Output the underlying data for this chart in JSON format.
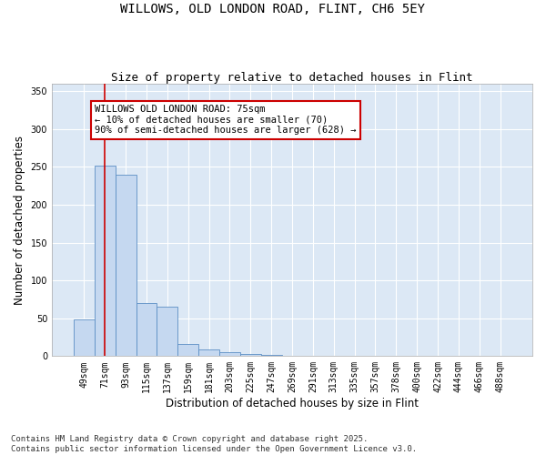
{
  "title1": "WILLOWS, OLD LONDON ROAD, FLINT, CH6 5EY",
  "title2": "Size of property relative to detached houses in Flint",
  "xlabel": "Distribution of detached houses by size in Flint",
  "ylabel": "Number of detached properties",
  "categories": [
    "49sqm",
    "71sqm",
    "93sqm",
    "115sqm",
    "137sqm",
    "159sqm",
    "181sqm",
    "203sqm",
    "225sqm",
    "247sqm",
    "269sqm",
    "291sqm",
    "313sqm",
    "335sqm",
    "357sqm",
    "378sqm",
    "400sqm",
    "422sqm",
    "444sqm",
    "466sqm",
    "488sqm"
  ],
  "values": [
    49,
    252,
    240,
    70,
    65,
    16,
    9,
    5,
    3,
    2,
    1,
    0,
    0,
    0,
    0,
    0,
    0,
    0,
    0,
    0,
    0
  ],
  "bar_color": "#c5d8f0",
  "bar_edge_color": "#5b8ec4",
  "vline_x": 1,
  "vline_color": "#cc0000",
  "annotation_text": "WILLOWS OLD LONDON ROAD: 75sqm\n← 10% of detached houses are smaller (70)\n90% of semi-detached houses are larger (628) →",
  "annotation_box_color": "#ffffff",
  "annotation_box_edge": "#cc0000",
  "ylim": [
    0,
    360
  ],
  "yticks": [
    0,
    50,
    100,
    150,
    200,
    250,
    300,
    350
  ],
  "background_color": "#dce8f5",
  "fig_background_color": "#ffffff",
  "footer": "Contains HM Land Registry data © Crown copyright and database right 2025.\nContains public sector information licensed under the Open Government Licence v3.0.",
  "title_fontsize": 10,
  "subtitle_fontsize": 9,
  "axis_label_fontsize": 8.5,
  "tick_fontsize": 7,
  "footer_fontsize": 6.5,
  "annot_fontsize": 7.5
}
